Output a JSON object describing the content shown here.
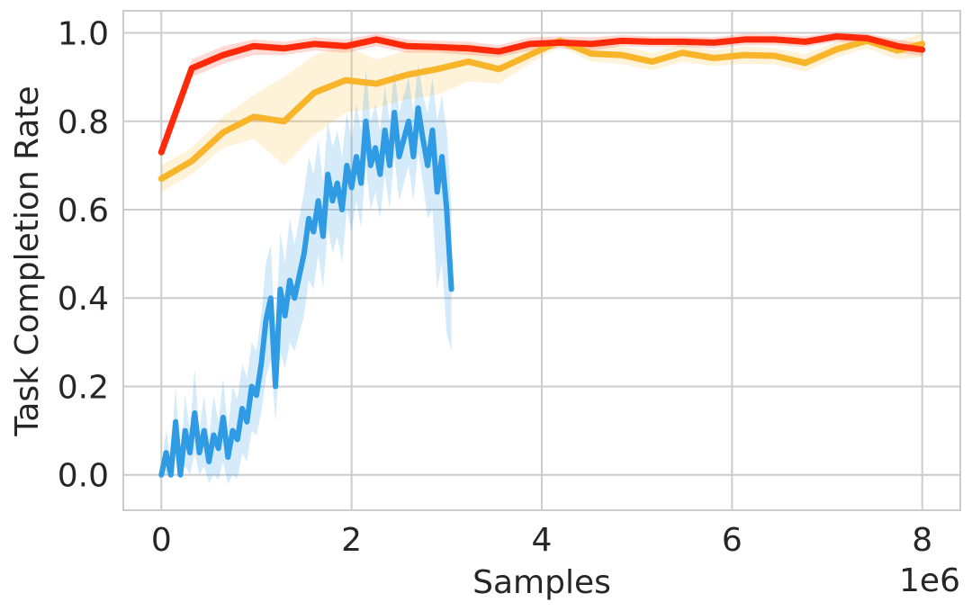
{
  "chart_data": {
    "type": "line",
    "title": "",
    "xlabel": "Samples",
    "ylabel": "Task Completion Rate",
    "x_offset_text": "1e6",
    "xlim": [
      -0.4,
      8.4
    ],
    "ylim": [
      -0.08,
      1.05
    ],
    "x_ticks": [
      0,
      2,
      4,
      6,
      8
    ],
    "x_tick_labels": [
      "0",
      "2",
      "4",
      "6",
      "8"
    ],
    "y_ticks": [
      0.0,
      0.2,
      0.4,
      0.6,
      0.8,
      1.0
    ],
    "y_tick_labels": [
      "0.0",
      "0.2",
      "0.4",
      "0.6",
      "0.8",
      "1.0"
    ],
    "grid": true,
    "legend": "none",
    "series": [
      {
        "color": "#ff2a0a",
        "x": [
          0,
          0.32,
          0.65,
          0.97,
          1.29,
          1.61,
          1.94,
          2.26,
          2.58,
          2.9,
          3.23,
          3.55,
          3.87,
          4.19,
          4.52,
          4.84,
          5.16,
          5.48,
          5.81,
          6.13,
          6.45,
          6.77,
          7.1,
          7.42,
          7.74,
          8.0
        ],
        "y": [
          0.73,
          0.92,
          0.95,
          0.97,
          0.965,
          0.975,
          0.97,
          0.985,
          0.97,
          0.968,
          0.965,
          0.958,
          0.975,
          0.978,
          0.975,
          0.982,
          0.98,
          0.98,
          0.978,
          0.985,
          0.985,
          0.98,
          0.992,
          0.988,
          0.97,
          0.962
        ],
        "lower": [
          0.72,
          0.9,
          0.93,
          0.95,
          0.95,
          0.96,
          0.955,
          0.97,
          0.955,
          0.955,
          0.95,
          0.945,
          0.96,
          0.965,
          0.96,
          0.97,
          0.968,
          0.968,
          0.965,
          0.972,
          0.972,
          0.968,
          0.98,
          0.975,
          0.955,
          0.948
        ],
        "upper": [
          0.74,
          0.94,
          0.97,
          0.985,
          0.98,
          0.99,
          0.985,
          0.998,
          0.985,
          0.982,
          0.98,
          0.972,
          0.99,
          0.992,
          0.99,
          0.995,
          0.992,
          0.992,
          0.99,
          0.998,
          0.997,
          0.993,
          1.0,
          0.998,
          0.985,
          0.976
        ]
      },
      {
        "color": "#f9b52a",
        "x": [
          0,
          0.32,
          0.65,
          0.97,
          1.29,
          1.61,
          1.94,
          2.26,
          2.58,
          2.9,
          3.23,
          3.55,
          3.87,
          4.19,
          4.52,
          4.84,
          5.16,
          5.48,
          5.81,
          6.13,
          6.45,
          6.77,
          7.1,
          7.42,
          7.74,
          8.0
        ],
        "y": [
          0.67,
          0.71,
          0.775,
          0.81,
          0.8,
          0.865,
          0.893,
          0.885,
          0.905,
          0.918,
          0.935,
          0.918,
          0.95,
          0.982,
          0.953,
          0.95,
          0.935,
          0.955,
          0.943,
          0.95,
          0.948,
          0.932,
          0.963,
          0.982,
          0.96,
          0.975
        ],
        "lower": [
          0.64,
          0.68,
          0.74,
          0.76,
          0.7,
          0.77,
          0.82,
          0.83,
          0.85,
          0.86,
          0.89,
          0.885,
          0.93,
          0.97,
          0.935,
          0.93,
          0.915,
          0.935,
          0.925,
          0.93,
          0.928,
          0.912,
          0.945,
          0.965,
          0.94,
          0.945
        ],
        "upper": [
          0.7,
          0.74,
          0.81,
          0.86,
          0.9,
          0.95,
          0.97,
          0.94,
          0.96,
          0.97,
          0.975,
          0.95,
          0.97,
          0.99,
          0.97,
          0.97,
          0.955,
          0.975,
          0.96,
          0.97,
          0.965,
          0.952,
          0.98,
          0.995,
          0.98,
          1.0
        ]
      },
      {
        "color": "#2e9be4",
        "x": [
          0.0,
          0.05,
          0.1,
          0.15,
          0.2,
          0.25,
          0.3,
          0.35,
          0.4,
          0.45,
          0.5,
          0.55,
          0.6,
          0.65,
          0.7,
          0.75,
          0.8,
          0.85,
          0.9,
          0.95,
          1.0,
          1.05,
          1.1,
          1.15,
          1.2,
          1.25,
          1.3,
          1.35,
          1.4,
          1.45,
          1.5,
          1.55,
          1.6,
          1.65,
          1.7,
          1.75,
          1.8,
          1.85,
          1.9,
          1.95,
          2.0,
          2.05,
          2.1,
          2.15,
          2.2,
          2.25,
          2.3,
          2.35,
          2.4,
          2.45,
          2.5,
          2.55,
          2.6,
          2.65,
          2.7,
          2.75,
          2.8,
          2.85,
          2.9,
          2.95,
          3.0,
          3.05
        ],
        "y": [
          0.0,
          0.05,
          0.0,
          0.12,
          0.0,
          0.1,
          0.05,
          0.14,
          0.05,
          0.1,
          0.03,
          0.09,
          0.06,
          0.13,
          0.04,
          0.1,
          0.08,
          0.15,
          0.12,
          0.2,
          0.18,
          0.25,
          0.35,
          0.4,
          0.2,
          0.42,
          0.36,
          0.44,
          0.4,
          0.45,
          0.5,
          0.58,
          0.55,
          0.62,
          0.54,
          0.68,
          0.62,
          0.66,
          0.6,
          0.7,
          0.65,
          0.72,
          0.66,
          0.8,
          0.7,
          0.74,
          0.68,
          0.78,
          0.7,
          0.82,
          0.72,
          0.76,
          0.8,
          0.72,
          0.83,
          0.76,
          0.7,
          0.78,
          0.64,
          0.72,
          0.6,
          0.42
        ],
        "lower": [
          0.0,
          0.0,
          0.0,
          0.04,
          0.0,
          0.02,
          0.0,
          0.05,
          0.0,
          0.02,
          -0.02,
          0.0,
          -0.01,
          0.03,
          -0.02,
          0.0,
          -0.01,
          0.05,
          0.03,
          0.1,
          0.09,
          0.14,
          0.22,
          0.26,
          0.12,
          0.28,
          0.24,
          0.3,
          0.28,
          0.32,
          0.36,
          0.44,
          0.42,
          0.5,
          0.42,
          0.56,
          0.5,
          0.54,
          0.48,
          0.6,
          0.55,
          0.62,
          0.56,
          0.7,
          0.6,
          0.64,
          0.58,
          0.68,
          0.6,
          0.72,
          0.62,
          0.66,
          0.7,
          0.62,
          0.73,
          0.66,
          0.58,
          0.6,
          0.42,
          0.48,
          0.32,
          0.28
        ],
        "upper": [
          0.02,
          0.1,
          0.04,
          0.2,
          0.04,
          0.18,
          0.1,
          0.24,
          0.1,
          0.18,
          0.08,
          0.18,
          0.12,
          0.22,
          0.1,
          0.2,
          0.17,
          0.25,
          0.22,
          0.3,
          0.28,
          0.36,
          0.48,
          0.52,
          0.3,
          0.55,
          0.48,
          0.58,
          0.52,
          0.58,
          0.64,
          0.72,
          0.68,
          0.76,
          0.66,
          0.8,
          0.74,
          0.78,
          0.72,
          0.82,
          0.76,
          0.84,
          0.78,
          0.92,
          0.8,
          0.84,
          0.78,
          0.88,
          0.8,
          0.92,
          0.82,
          0.86,
          0.9,
          0.82,
          0.93,
          0.86,
          0.82,
          0.9,
          0.8,
          0.86,
          0.78,
          0.6
        ]
      }
    ]
  }
}
